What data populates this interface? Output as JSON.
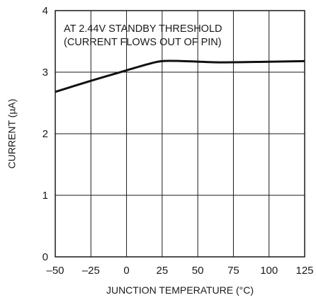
{
  "chart_data": {
    "type": "line",
    "title": "",
    "annotation_lines": [
      "AT 2.44V STANDBY THRESHOLD",
      "(CURRENT FLOWS OUT OF PIN)"
    ],
    "xlabel": "JUNCTION TEMPERATURE (°C)",
    "ylabel": "CURRENT (µA)",
    "xlim": [
      -50,
      125
    ],
    "ylim": [
      0,
      4
    ],
    "xticks": [
      -50,
      -25,
      0,
      25,
      50,
      75,
      100,
      125
    ],
    "xtick_labels": [
      "–50",
      "–25",
      "0",
      "25",
      "50",
      "75",
      "100",
      "125"
    ],
    "yticks": [
      0,
      1,
      2,
      3,
      4
    ],
    "ytick_labels": [
      "0",
      "1",
      "2",
      "3",
      "4"
    ],
    "grid": true,
    "series": [
      {
        "x": [
          -50,
          -25,
          0,
          15,
          25,
          40,
          65,
          100,
          125
        ],
        "y": [
          2.68,
          2.86,
          3.03,
          3.13,
          3.18,
          3.18,
          3.16,
          3.17,
          3.18
        ]
      }
    ]
  }
}
